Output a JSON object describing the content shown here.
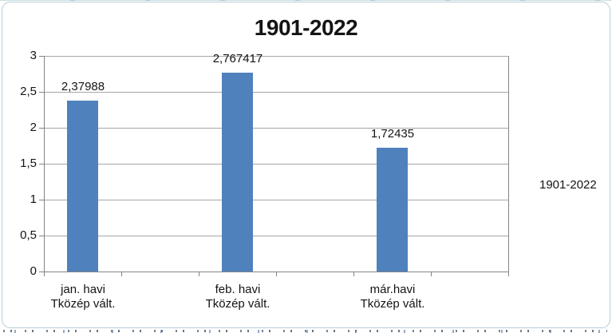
{
  "chart_data": {
    "type": "bar",
    "title": "1901-2022",
    "series": [
      {
        "name": "1901-2022",
        "values": [
          2.37988,
          2.767417,
          1.72435
        ]
      }
    ],
    "categories": [
      "jan. havi Tközép vált.",
      "feb. havi Tközép vált.",
      "már.havi Tközép vált."
    ],
    "category_lines": [
      [
        "jan. havi",
        "Tközép vált."
      ],
      [
        "feb. havi",
        "Tközép vált."
      ],
      [
        "már.havi",
        "Tközép vált."
      ]
    ],
    "data_labels": [
      "2,37988",
      "2,767417",
      "1,72435"
    ],
    "y_axis": {
      "tick_labels": [
        "3",
        "2,5",
        "2",
        "1,5",
        "1",
        "0,5",
        "0"
      ],
      "tick_values": [
        3,
        2.5,
        2,
        1.5,
        1,
        0.5,
        0
      ],
      "range": [
        0,
        3
      ]
    },
    "x_axis": {
      "slot_count": 6,
      "bars_in_slots": [
        0,
        2,
        4
      ]
    },
    "legend": {
      "label": "1901-2022",
      "position": "right"
    },
    "grid": true,
    "colors": {
      "bar": "#4f81bd",
      "gridline": "#a6a6a6",
      "axis": "#848484",
      "text": "#141414",
      "frame_border": "#b7cbd5"
    }
  }
}
